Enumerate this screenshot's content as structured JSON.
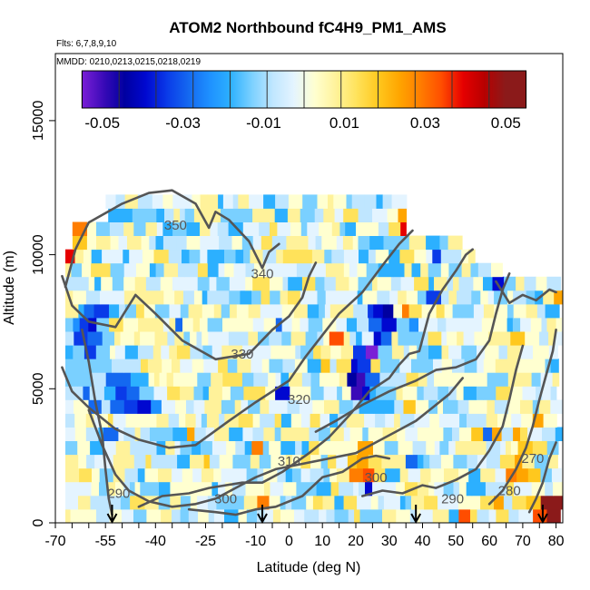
{
  "chart_data": {
    "type": "heatmap",
    "title": "ATOM2 Northbound fC4H9_PM1_AMS",
    "flights_label": "Flts: 6,7,8,9,10",
    "dates_label": "MMDD: 0210,0213,0215,0218,0219",
    "xlabel": "Latitude (deg N)",
    "ylabel": "Altitude (m)",
    "xlim": [
      -70,
      82
    ],
    "ylim": [
      0,
      17500
    ],
    "x_ticks": [
      "-70",
      "-55",
      "-40",
      "-25",
      "-10",
      "0",
      "10",
      "20",
      "30",
      "40",
      "50",
      "60",
      "70",
      "80"
    ],
    "x_tick_values": [
      -70,
      -55,
      -40,
      -25,
      -10,
      0,
      10,
      20,
      30,
      40,
      50,
      60,
      70,
      80
    ],
    "x_minor_step": 5,
    "y_ticks": [
      "0",
      "5000",
      "10000",
      "15000"
    ],
    "y_tick_values": [
      0,
      5000,
      10000,
      15000
    ],
    "colorbar": {
      "range": [
        -0.055,
        0.055
      ],
      "tick_labels": [
        "-0.05",
        "-0.03",
        "-0.01",
        "0.01",
        "0.03",
        "0.05"
      ],
      "tick_values": [
        -0.05,
        -0.03,
        -0.01,
        0.01,
        0.03,
        0.05
      ],
      "colors": [
        "#7a1fd6",
        "#3a0ab8",
        "#0000a0",
        "#0008d0",
        "#0a3ae8",
        "#1468f0",
        "#1e90ff",
        "#2cb0ff",
        "#7ad0ff",
        "#bfe6ff",
        "#e4f4ff",
        "#ffffd0",
        "#fff29a",
        "#ffe25a",
        "#ffc81e",
        "#ffa500",
        "#ff7d00",
        "#ff4d00",
        "#e60000",
        "#b80000",
        "#8b1a1a"
      ]
    },
    "arrows_lat": [
      -53,
      -8,
      38,
      76
    ],
    "contours": [
      {
        "label": "350",
        "lat": -34,
        "alt": 11100
      },
      {
        "label": "340",
        "lat": -8,
        "alt": 9300
      },
      {
        "label": "330",
        "lat": -14,
        "alt": 6300
      },
      {
        "label": "320",
        "lat": 3,
        "alt": 4600
      },
      {
        "label": "310",
        "lat": 0,
        "alt": 2300
      },
      {
        "label": "300",
        "lat": -19,
        "alt": 900
      },
      {
        "label": "300",
        "lat": 26,
        "alt": 1700
      },
      {
        "label": "290",
        "lat": -51,
        "alt": 1100
      },
      {
        "label": "290",
        "lat": 49,
        "alt": 900
      },
      {
        "label": "280",
        "lat": 66,
        "alt": 1200
      },
      {
        "label": "270",
        "lat": 73,
        "alt": 2400
      }
    ]
  }
}
